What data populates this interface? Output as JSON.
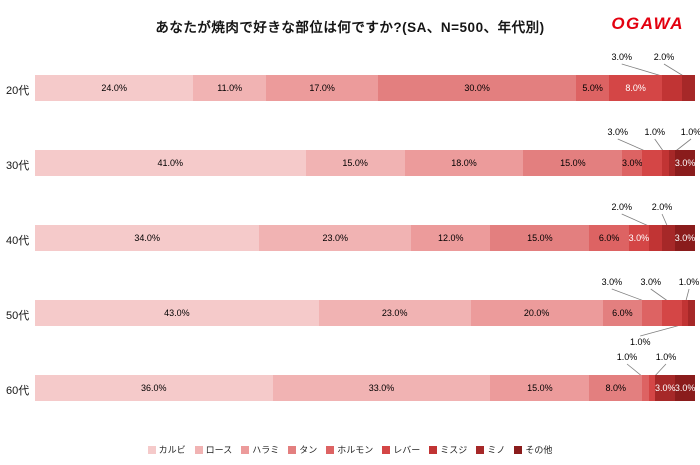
{
  "header": {
    "title": "あなたが焼肉で好きな部位は何ですか?(SA、N=500、年代別)",
    "logo_text": "OGAWA",
    "logo_color": "#e3000f"
  },
  "chart_data": {
    "type": "bar",
    "subtype": "horizontal-stacked",
    "title": "あなたが焼肉で好きな部位は何ですか?(SA、N=500、年代別)",
    "unit": "%",
    "value_suffix": "%",
    "xlim": [
      0,
      100
    ],
    "grid": false,
    "legend_position": "bottom",
    "white_label_from": 5,
    "categories": [
      "20代",
      "30代",
      "40代",
      "50代",
      "60代"
    ],
    "series": [
      {
        "name": "カルビ",
        "color": "#f5caca",
        "values": [
          24,
          41,
          34,
          43,
          36
        ]
      },
      {
        "name": "ロース",
        "color": "#f1b3b3",
        "values": [
          11,
          15,
          23,
          23,
          33
        ]
      },
      {
        "name": "ハラミ",
        "color": "#ec9b9b",
        "values": [
          17,
          18,
          12,
          20,
          15
        ]
      },
      {
        "name": "タン",
        "color": "#e37f7f",
        "values": [
          30,
          15,
          15,
          6,
          8
        ]
      },
      {
        "name": "ホルモン",
        "color": "#dd6363",
        "values": [
          5,
          3,
          6,
          3,
          1
        ]
      },
      {
        "name": "レバー",
        "color": "#d44646",
        "values": [
          8,
          3,
          3,
          3,
          1
        ]
      },
      {
        "name": "ミスジ",
        "color": "#c13434",
        "values": [
          3,
          1,
          2,
          1,
          0
        ]
      },
      {
        "name": "ミノ",
        "color": "#a62828",
        "values": [
          2,
          1,
          2,
          1,
          3
        ]
      },
      {
        "name": "その他",
        "color": "#8a1c1c",
        "values": [
          0,
          3,
          3,
          0,
          3
        ]
      }
    ],
    "rows": [
      {
        "category": "20代",
        "placements": [
          "inside",
          "inside",
          "inside",
          "inside",
          "inside",
          "inside",
          "above",
          "above",
          "none"
        ],
        "callout_x": {
          "6": 88.9,
          "7": 95.3
        }
      },
      {
        "category": "30代",
        "placements": [
          "inside",
          "inside",
          "inside",
          "inside",
          "inside",
          "above",
          "above",
          "above",
          "inside"
        ],
        "callout_x": {
          "5": 88.3,
          "6": 93.9,
          "7": 99.4
        }
      },
      {
        "category": "40代",
        "placements": [
          "inside",
          "inside",
          "inside",
          "inside",
          "inside",
          "inside",
          "above",
          "above",
          "inside"
        ],
        "callout_x": {
          "6": 88.9,
          "7": 95.0
        }
      },
      {
        "category": "50代",
        "placements": [
          "inside",
          "inside",
          "inside",
          "inside",
          "above",
          "above",
          "above",
          "below",
          "none"
        ],
        "callout_x": {
          "4": 87.4,
          "5": 93.3,
          "6": 99.1,
          "7": 91.7
        }
      },
      {
        "category": "60代",
        "placements": [
          "inside",
          "inside",
          "inside",
          "inside",
          "above",
          "above",
          "none",
          "inside",
          "inside"
        ],
        "callout_x": {
          "4": 89.7,
          "5": 95.6
        }
      }
    ]
  }
}
